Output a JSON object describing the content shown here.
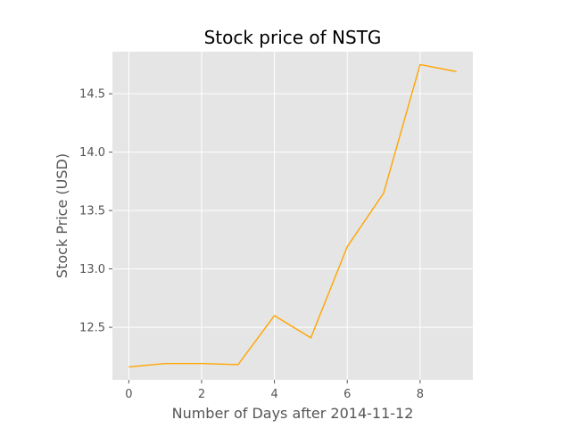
{
  "chart_data": {
    "type": "line",
    "title": "Stock price of NSTG",
    "xlabel": "Number of Days after 2014-11-12",
    "ylabel": "Stock Price (USD)",
    "x": [
      0,
      1,
      2,
      3,
      4,
      5,
      6,
      7,
      8,
      9
    ],
    "series": [
      {
        "color": "#ffa500",
        "values": [
          12.16,
          12.19,
          12.19,
          12.18,
          12.6,
          12.41,
          13.19,
          13.65,
          14.75,
          14.69
        ]
      }
    ],
    "xlim": [
      -0.45,
      9.45
    ],
    "ylim": [
      12.05,
      14.86
    ],
    "xticks": [
      0,
      2,
      4,
      6,
      8
    ],
    "xtick_labels": [
      "0",
      "2",
      "4",
      "6",
      "8"
    ],
    "yticks": [
      12.5,
      13.0,
      13.5,
      14.0,
      14.5
    ],
    "ytick_labels": [
      "12.5",
      "13.0",
      "13.5",
      "14.0",
      "14.5"
    ],
    "grid": true,
    "style": {
      "plot_background": "#e5e5e5",
      "grid_color": "#ffffff",
      "tick_color": "#555555"
    }
  }
}
